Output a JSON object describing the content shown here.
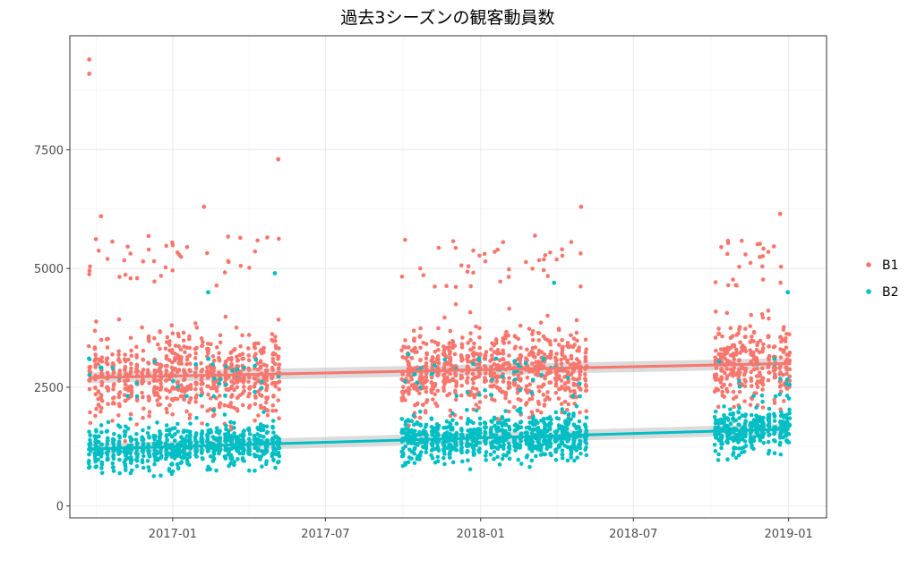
{
  "chart_data": {
    "type": "scatter",
    "title": "過去3シーズンの観客動員数",
    "xlabel": "",
    "ylabel": "",
    "x_axis": {
      "type": "date",
      "ticks": [
        "2017-01-01",
        "2017-07-01",
        "2018-01-01",
        "2018-07-01",
        "2019-01-01"
      ],
      "tick_labels": [
        "2017-01",
        "2017-07",
        "2018-01",
        "2018-07",
        "2019-01"
      ],
      "range": [
        "2016-09-01",
        "2019-02-15"
      ]
    },
    "y_axis": {
      "ticks": [
        0,
        2500,
        5000,
        7500
      ],
      "tick_labels": [
        "0",
        "2500",
        "5000",
        "7500"
      ],
      "range": [
        -250,
        9900
      ]
    },
    "grid": true,
    "legend": {
      "position": "right"
    },
    "seasons": [
      {
        "start": "2016-09-24",
        "end": "2017-05-07"
      },
      {
        "start": "2017-09-29",
        "end": "2018-05-06"
      },
      {
        "start": "2018-10-04",
        "end": "2019-01-02"
      }
    ],
    "series": [
      {
        "name": "B1",
        "color": "#F8766D",
        "typical_range": [
          1200,
          4600
        ],
        "mean": 2800,
        "trend": {
          "x": [
            "2016-09-24",
            "2019-01-02"
          ],
          "y": [
            2700,
            3000
          ]
        },
        "highlights": [
          {
            "x": "2016-09-24",
            "y": 9400
          },
          {
            "x": "2016-09-24",
            "y": 9100
          },
          {
            "x": "2016-10-08",
            "y": 6100
          },
          {
            "x": "2017-02-07",
            "y": 6300
          },
          {
            "x": "2017-05-06",
            "y": 7300
          },
          {
            "x": "2018-04-30",
            "y": 6300
          },
          {
            "x": "2018-12-22",
            "y": 6150
          }
        ]
      },
      {
        "name": "B2",
        "color": "#00BFC4",
        "typical_range": [
          500,
          2300
        ],
        "mean": 1400,
        "trend": {
          "x": [
            "2016-09-24",
            "2019-01-02"
          ],
          "y": [
            1200,
            1620
          ]
        },
        "highlights": [
          {
            "x": "2017-05-02",
            "y": 4900
          },
          {
            "x": "2017-02-12",
            "y": 4500
          },
          {
            "x": "2018-03-29",
            "y": 4700
          },
          {
            "x": "2018-12-31",
            "y": 4500
          }
        ]
      }
    ]
  }
}
